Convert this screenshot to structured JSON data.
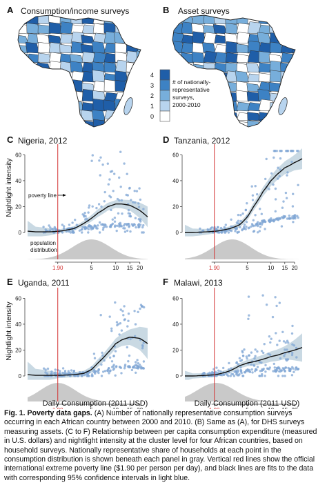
{
  "figure": {
    "panelA": {
      "letter": "A",
      "title": "Consumption/income surveys"
    },
    "panelB": {
      "letter": "B",
      "title": "Asset surveys"
    },
    "legend": {
      "ticks": [
        "4",
        "3",
        "2",
        "1",
        "0"
      ],
      "text": [
        "# of nationally-",
        "representative",
        "surveys,",
        "2000-2010"
      ],
      "colors": [
        "#1f5ea8",
        "#3d82c4",
        "#77aedb",
        "#b8d4ee",
        "#ffffff"
      ]
    },
    "panels": [
      {
        "letter": "C",
        "title": "Nigeria, 2012"
      },
      {
        "letter": "D",
        "title": "Tanzania, 2012"
      },
      {
        "letter": "E",
        "title": "Uganda, 2011"
      },
      {
        "letter": "F",
        "title": "Malawi, 2013"
      }
    ],
    "yAxisLabel": "Nightlight intensity",
    "xAxisLabel": "Daily Consumption (2011 USD)",
    "annotations": {
      "povertyLine": "poverty line",
      "population1": "population",
      "population2": "distribution"
    },
    "colors": {
      "points": "#7fa6d4",
      "band": "#bcd0dc",
      "fit": "#111111",
      "redLine": "#d33333",
      "density": "#c9c9c9"
    }
  },
  "chart_data": [
    {
      "type": "scatter",
      "panel": "C",
      "title": "Nigeria, 2012",
      "xlabel": "",
      "ylabel": "Nightlight intensity",
      "xscale": "log",
      "xticks": [
        1.9,
        5,
        10,
        15,
        20
      ],
      "xtick_labels": [
        "1.90",
        "5",
        "10",
        "15",
        "20"
      ],
      "yticks": [
        0,
        20,
        40,
        60
      ],
      "ylim": [
        0,
        65
      ],
      "xlim": [
        0.8,
        25
      ],
      "poverty_line": 1.9,
      "fit": {
        "x": [
          0.8,
          1,
          1.5,
          2,
          3,
          4,
          5,
          6,
          8,
          10,
          12,
          15,
          20,
          25
        ],
        "y": [
          1,
          0.5,
          0.5,
          1,
          3,
          7,
          11,
          15,
          20,
          22,
          22,
          21,
          17,
          12
        ]
      },
      "ci_width": {
        "x": [
          0.8,
          1,
          2,
          4,
          6,
          10,
          15,
          20,
          25
        ],
        "w": [
          8,
          4,
          1.5,
          2,
          3,
          3,
          4,
          6,
          8
        ]
      },
      "density": {
        "center": 5,
        "spread": 0.55
      }
    },
    {
      "type": "scatter",
      "panel": "D",
      "title": "Tanzania, 2012",
      "xlabel": "",
      "ylabel": "",
      "xscale": "log",
      "xticks": [
        1.9,
        5,
        10,
        15,
        20
      ],
      "xtick_labels": [
        "1.90",
        "5",
        "10",
        "15",
        "20"
      ],
      "yticks": [
        0,
        20,
        40,
        60
      ],
      "ylim": [
        0,
        65
      ],
      "xlim": [
        0.8,
        25
      ],
      "poverty_line": 1.9,
      "fit": {
        "x": [
          0.8,
          1,
          1.5,
          2,
          3,
          4,
          5,
          6,
          8,
          10,
          12,
          15,
          20,
          25
        ],
        "y": [
          0,
          0,
          0.5,
          1,
          3,
          6,
          12,
          20,
          32,
          40,
          45,
          50,
          54,
          57
        ]
      },
      "ci_width": {
        "x": [
          0.8,
          1,
          2,
          4,
          6,
          10,
          15,
          20,
          25
        ],
        "w": [
          6,
          3,
          1.5,
          2,
          3,
          4,
          5,
          6,
          8
        ]
      },
      "density": {
        "center": 3.2,
        "spread": 0.55
      }
    },
    {
      "type": "scatter",
      "panel": "E",
      "title": "Uganda, 2011",
      "xlabel": "Daily Consumption (2011 USD)",
      "ylabel": "Nightlight intensity",
      "xscale": "log",
      "xticks": [
        1.9,
        5,
        10,
        15,
        20
      ],
      "xtick_labels": [
        "1.90",
        "5",
        "10",
        "15",
        "20"
      ],
      "yticks": [
        0,
        20,
        40,
        60
      ],
      "ylim": [
        0,
        65
      ],
      "xlim": [
        0.8,
        25
      ],
      "poverty_line": 1.9,
      "fit": {
        "x": [
          0.8,
          1,
          1.5,
          2,
          3,
          4,
          5,
          6,
          8,
          10,
          12,
          15,
          20,
          25
        ],
        "y": [
          1,
          0.5,
          0.5,
          0.5,
          1,
          2,
          5,
          10,
          18,
          25,
          28,
          30,
          29,
          25
        ]
      },
      "ci_width": {
        "x": [
          0.8,
          1,
          2,
          4,
          6,
          10,
          15,
          20,
          25
        ],
        "w": [
          10,
          5,
          2,
          2,
          3,
          4,
          6,
          9,
          12
        ]
      },
      "density": {
        "center": 1.9,
        "spread": 0.5
      }
    },
    {
      "type": "scatter",
      "panel": "F",
      "title": "Malawi, 2013",
      "xlabel": "Daily Consumption (2011 USD)",
      "ylabel": "",
      "xscale": "log",
      "xticks": [
        1.9,
        5,
        10,
        15,
        20
      ],
      "xtick_labels": [
        "1.90",
        "5",
        "10",
        "15",
        "20"
      ],
      "yticks": [
        0,
        20,
        40,
        60
      ],
      "ylim": [
        0,
        65
      ],
      "xlim": [
        0.8,
        25
      ],
      "poverty_line": 1.9,
      "fit": {
        "x": [
          0.8,
          1,
          1.5,
          2,
          3,
          4,
          5,
          6,
          8,
          10,
          12,
          15,
          20,
          25
        ],
        "y": [
          0,
          0,
          0.5,
          1,
          4,
          8,
          10,
          11,
          13,
          15,
          16,
          18,
          20,
          22
        ]
      },
      "ci_width": {
        "x": [
          0.8,
          1,
          2,
          4,
          6,
          10,
          15,
          20,
          25
        ],
        "w": [
          4,
          2,
          1.5,
          2,
          3,
          4,
          5,
          8,
          11
        ]
      },
      "density": {
        "center": 2,
        "spread": 0.55
      }
    }
  ],
  "caption": {
    "title": "Fig. 1. Poverty data gaps.",
    "body": " (A) Number of nationally representative consumption surveys occurring in each African country between 2000 and 2010. (B) Same as (A), for DHS surveys measuring assets. (C to F) Relationship between per capita consumption expenditure (measured in U.S. dollars) and nightlight intensity at the cluster level for four African countries, based on household surveys. Nationally representative share of households at each point in the consumption distribution is shown beneath each panel in gray. Vertical red lines show the official international extreme poverty line ($1.90 per person per day), and black lines are fits to the data with corresponding 95% confidence intervals in light blue."
  }
}
